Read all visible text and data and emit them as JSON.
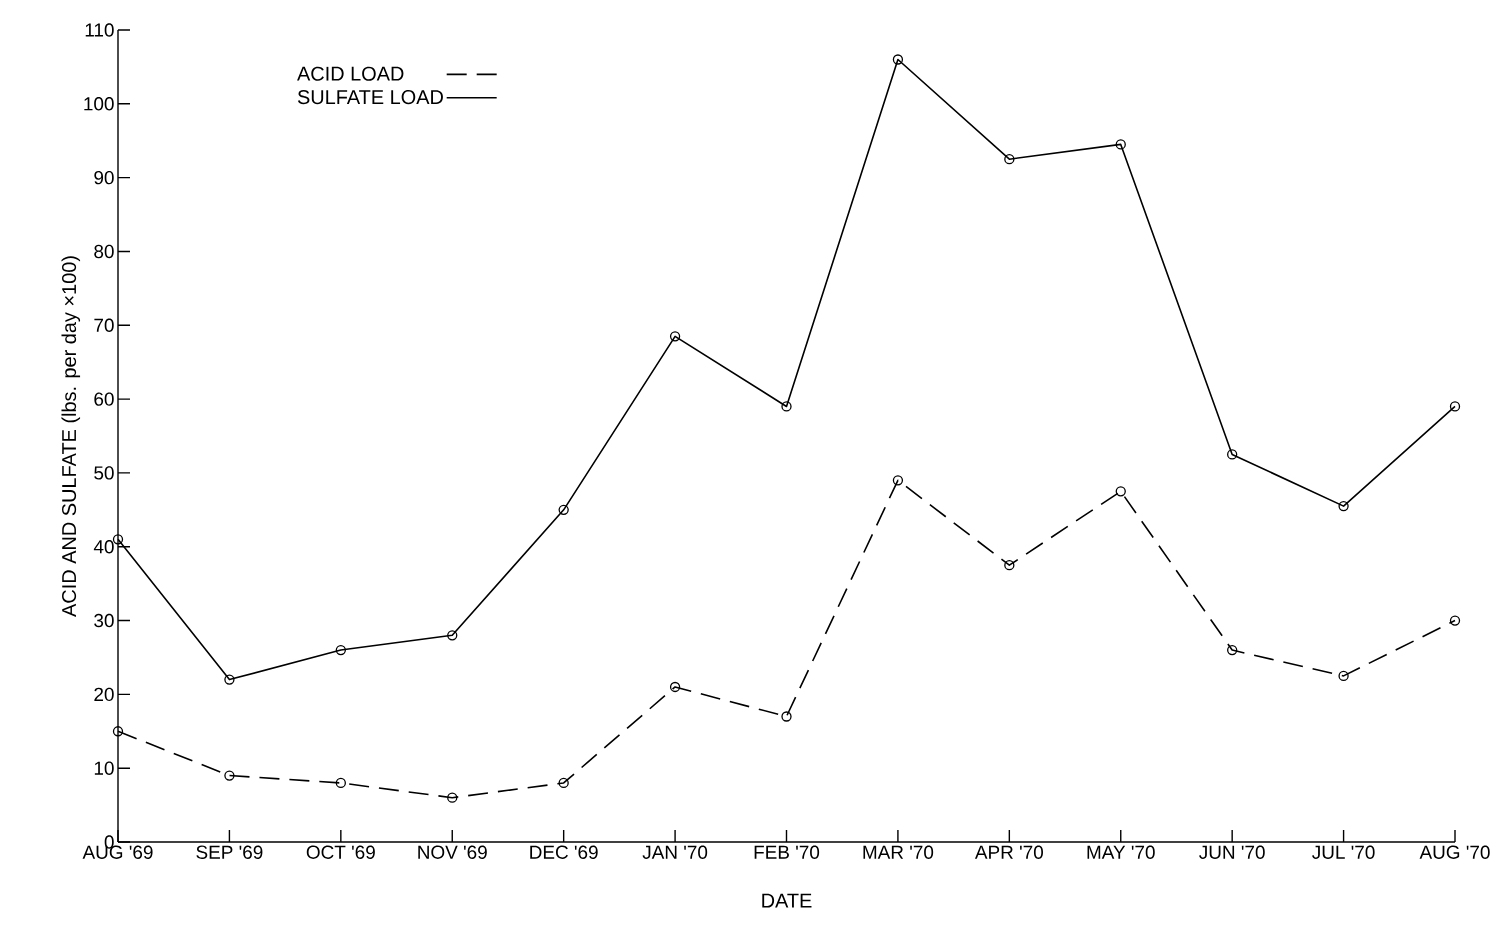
{
  "chart_data": {
    "type": "line",
    "xlabel": "DATE",
    "ylabel": "ACID AND SULFATE (lbs. per day ×100)",
    "categories": [
      "AUG '69",
      "SEP '69",
      "OCT '69",
      "NOV '69",
      "DEC '69",
      "JAN '70",
      "FEB '70",
      "MAR '70",
      "APR '70",
      "MAY '70",
      "JUN '70",
      "JUL '70",
      "AUG '70"
    ],
    "series": [
      {
        "name": "ACID LOAD",
        "color": "#000000",
        "line_style": "dashed",
        "values": [
          15,
          9,
          8,
          6,
          8,
          21,
          17,
          49,
          37.5,
          47.5,
          26,
          22.5,
          30
        ]
      },
      {
        "name": "SULFATE LOAD",
        "color": "#000000",
        "line_style": "solid",
        "values": [
          41,
          22,
          26,
          28,
          45,
          68.5,
          59,
          106,
          92.5,
          94.5,
          52.5,
          45.5,
          59
        ]
      }
    ],
    "ylim": [
      0,
      110
    ],
    "yticks": [
      0,
      10,
      20,
      30,
      40,
      50,
      60,
      70,
      80,
      90,
      100,
      110
    ],
    "marker": "circle",
    "legend": "top left",
    "grid": false
  }
}
